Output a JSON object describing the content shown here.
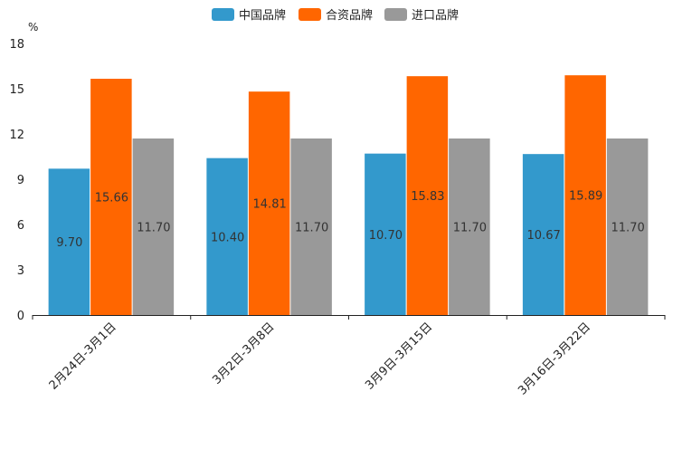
{
  "chart_data": {
    "type": "bar",
    "title": "",
    "xlabel": "",
    "ylabel": "%",
    "ylim": [
      0,
      18
    ],
    "yticks": [
      0,
      3,
      6,
      9,
      12,
      15,
      18
    ],
    "grid": false,
    "legend_position": "top-center",
    "categories": [
      "2月24日-3月1日",
      "3月2日-3月8日",
      "3月9日-3月15日",
      "3月16日-3月22日"
    ],
    "series": [
      {
        "name": "中国品牌",
        "color": "#3399cc",
        "values": [
          9.7,
          10.4,
          10.7,
          10.67
        ],
        "labels": [
          "9.70",
          "10.40",
          "10.70",
          "10.67"
        ]
      },
      {
        "name": "合资品牌",
        "color": "#ff6600",
        "values": [
          15.66,
          14.81,
          15.83,
          15.89
        ],
        "labels": [
          "15.66",
          "14.81",
          "15.83",
          "15.89"
        ]
      },
      {
        "name": "进口品牌",
        "color": "#999999",
        "values": [
          11.7,
          11.7,
          11.7,
          11.7
        ],
        "labels": [
          "11.70",
          "11.70",
          "11.70",
          "11.70"
        ]
      }
    ]
  }
}
